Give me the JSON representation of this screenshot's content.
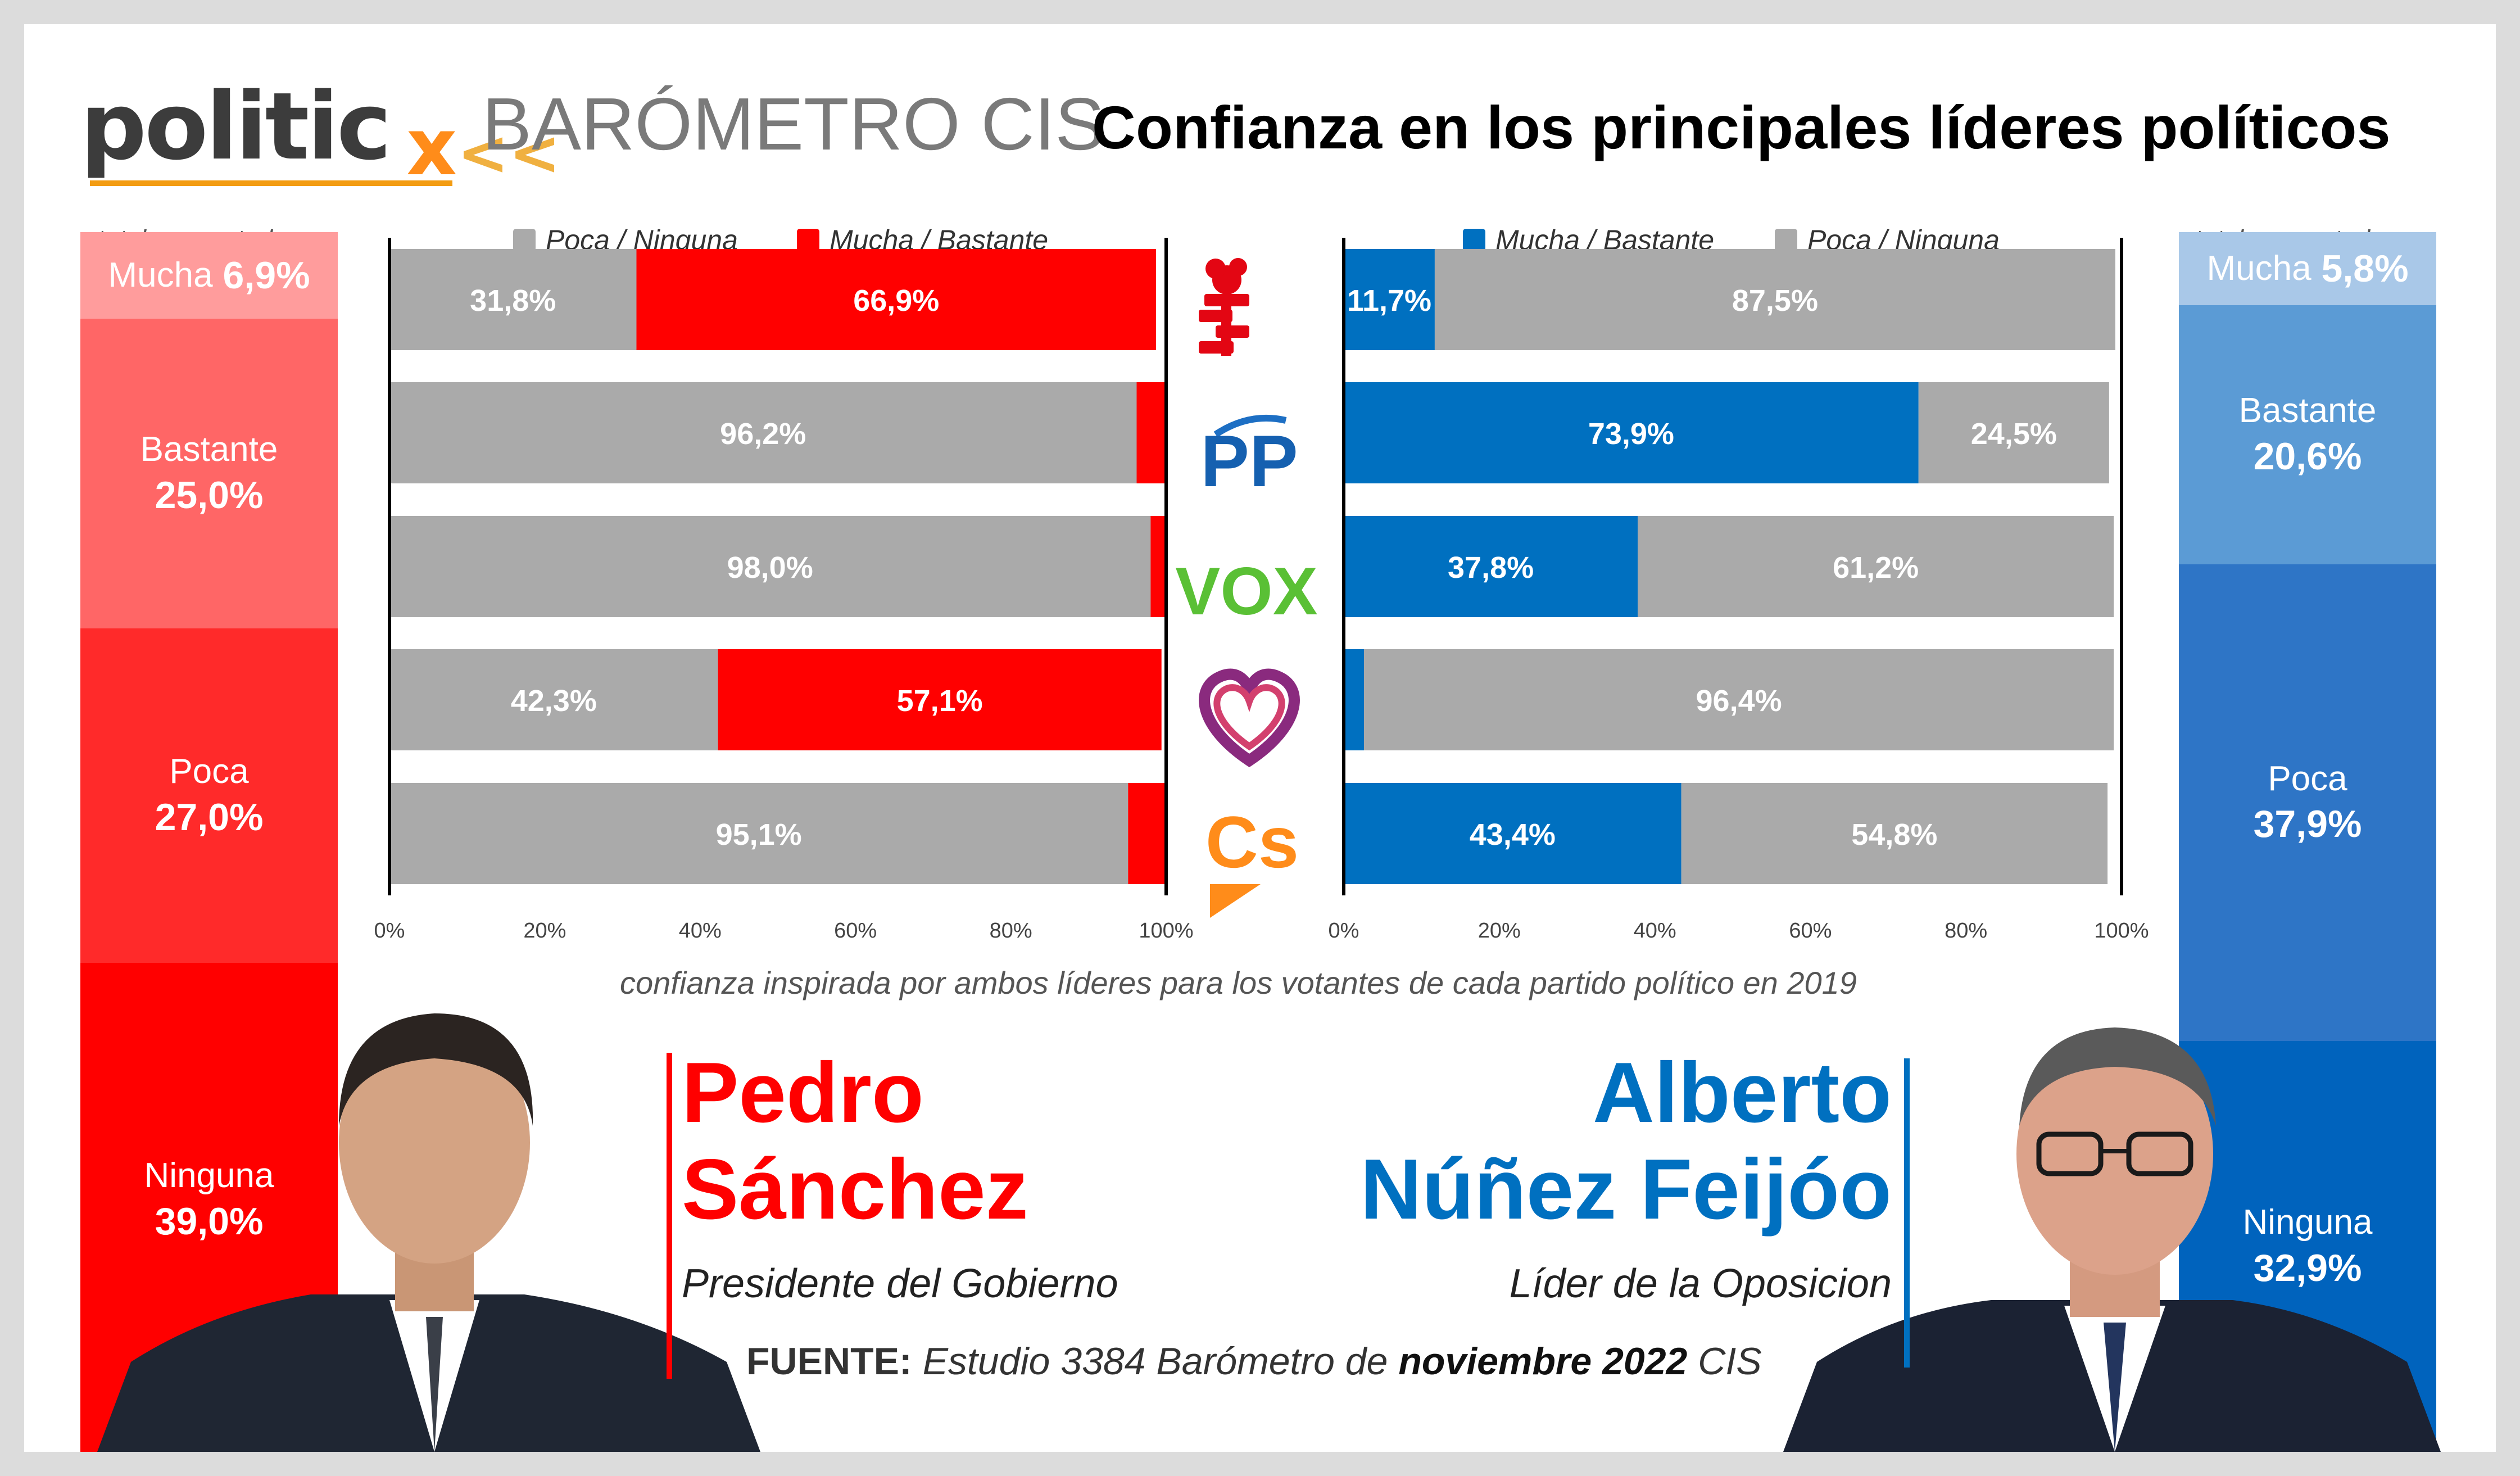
{
  "header": {
    "logo": "politic",
    "logo_mark": "x",
    "logo_chevrons": "<<",
    "barometer_label": "BARÓMETRO CIS",
    "title": "Confianza en los principales líderes políticos"
  },
  "colors": {
    "gray": "#aaaaaa",
    "red": "#ff0000",
    "blue": "#0070c0",
    "orange": "#ff8c1a",
    "vox_green": "#5ac035",
    "podemos_purple": "#6b2a64"
  },
  "left_panel": {
    "caption": "total encuestados",
    "segments": [
      {
        "label": "Mucha",
        "value": "6,9%",
        "color": "#ff9c9c"
      },
      {
        "label": "Bastante",
        "value": "25,0%",
        "color": "#ff6666"
      },
      {
        "label": "Poca",
        "value": "27,0%",
        "color": "#ff2a2a"
      },
      {
        "label": "Ninguna",
        "value": "39,0%",
        "color": "#ff0000"
      }
    ]
  },
  "right_panel": {
    "caption": "total encuestados",
    "segments": [
      {
        "label": "Mucha",
        "value": "5,8%",
        "color": "#a9c8e8"
      },
      {
        "label": "Bastante",
        "value": "20,6%",
        "color": "#5b9bd5"
      },
      {
        "label": "Poca",
        "value": "37,9%",
        "color": "#2e75c6"
      },
      {
        "label": "Ninguna",
        "value": "32,9%",
        "color": "#0063bd"
      }
    ]
  },
  "legend": {
    "left": [
      {
        "label": "Poca / Ninguna",
        "color": "#aaaaaa"
      },
      {
        "label": "Mucha / Bastante",
        "color": "#ff0000"
      }
    ],
    "right": [
      {
        "label": "Mucha / Bastante",
        "color": "#0070c0"
      },
      {
        "label": "Poca / Ninguna",
        "color": "#aaaaaa"
      }
    ]
  },
  "parties": [
    {
      "name": "PSOE",
      "icon": "psoe-rose-icon"
    },
    {
      "name": "PP",
      "logo_text": "PP"
    },
    {
      "name": "VOX",
      "logo_text": "VOX"
    },
    {
      "name": "Unidas Podemos",
      "icon": "podemos-heart-icon"
    },
    {
      "name": "Ciudadanos",
      "logo_text": "Cs"
    }
  ],
  "chart_data": [
    {
      "type": "bar",
      "orientation": "horizontal",
      "stacked": true,
      "leader": "Pedro Sánchez",
      "categories": [
        "PSOE",
        "PP",
        "VOX",
        "Unidas Podemos",
        "Ciudadanos"
      ],
      "series": [
        {
          "name": "Poca / Ninguna",
          "values": [
            31.8,
            96.2,
            98.0,
            42.3,
            95.1
          ],
          "labels": [
            "31,8%",
            "96,2%",
            "98,0%",
            "42,3%",
            "95,1%"
          ]
        },
        {
          "name": "Mucha / Bastante",
          "values": [
            66.9,
            3.8,
            2.0,
            57.1,
            4.9
          ],
          "labels": [
            "66,9%",
            "",
            "",
            "57,1%",
            ""
          ]
        }
      ],
      "xlim": [
        0,
        100
      ],
      "ticks": [
        "0%",
        "20%",
        "40%",
        "60%",
        "80%",
        "100%"
      ]
    },
    {
      "type": "bar",
      "orientation": "horizontal",
      "stacked": true,
      "leader": "Alberto Núñez Feijóo",
      "categories": [
        "PSOE",
        "PP",
        "VOX",
        "Unidas Podemos",
        "Ciudadanos"
      ],
      "series": [
        {
          "name": "Mucha / Bastante",
          "values": [
            11.7,
            73.9,
            37.8,
            2.6,
            43.4
          ],
          "labels": [
            "11,7%",
            "73,9%",
            "37,8%",
            "",
            "43,4%"
          ]
        },
        {
          "name": "Poca / Ninguna",
          "values": [
            87.5,
            24.5,
            61.2,
            96.4,
            54.8
          ],
          "labels": [
            "87,5%",
            "24,5%",
            "61,2%",
            "96,4%",
            "54,8%"
          ]
        }
      ],
      "xlim": [
        0,
        100
      ],
      "ticks": [
        "0%",
        "20%",
        "40%",
        "60%",
        "80%",
        "100%"
      ]
    }
  ],
  "chart_note": "confianza inspirada por ambos líderes para los votantes de cada partido político en 2019",
  "leaders": {
    "left": {
      "first": "Pedro",
      "last": "Sánchez",
      "role": "Presidente del Gobierno"
    },
    "right": {
      "first": "Alberto",
      "last": "Núñez Feijóo",
      "role": "Líder de la Oposicion"
    }
  },
  "source": {
    "label": "FUENTE:",
    "text1": "Estudio 3384 Barómetro de",
    "bold": "noviembre 2022",
    "text2": "CIS"
  }
}
